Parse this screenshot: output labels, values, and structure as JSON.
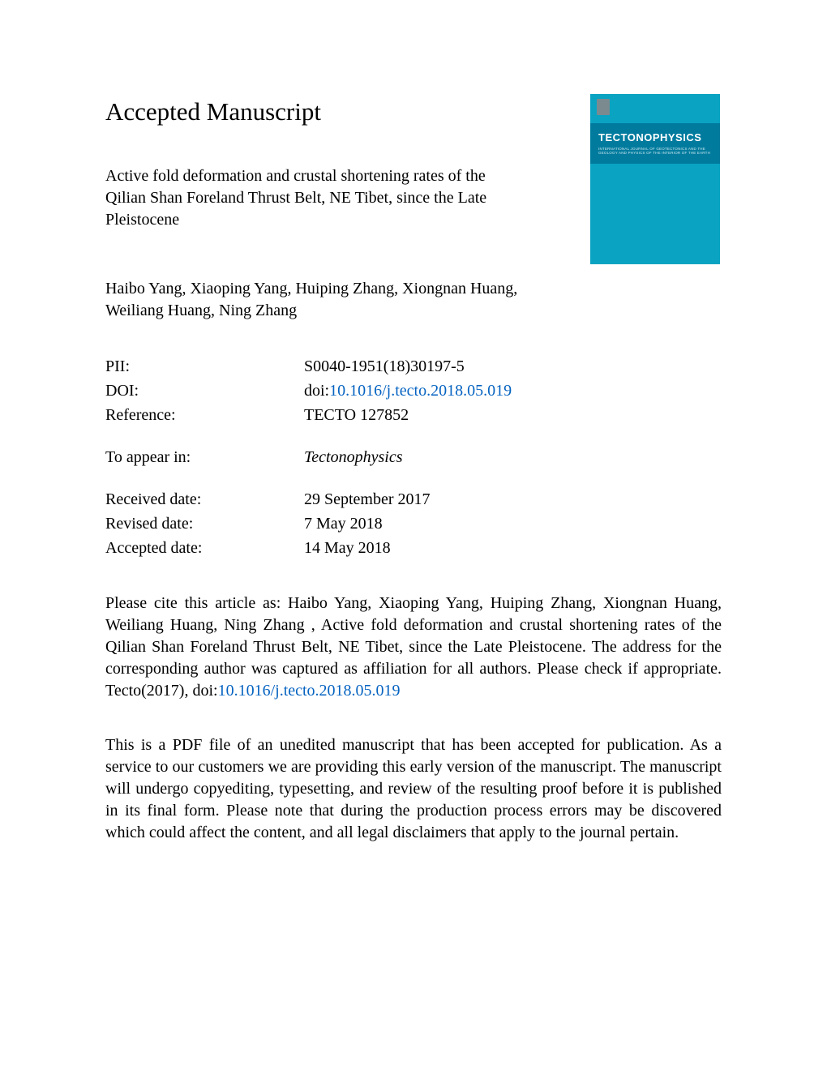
{
  "heading": "Accepted Manuscript",
  "title": "Active fold deformation and crustal shortening rates of the Qilian Shan Foreland Thrust Belt, NE Tibet, since the Late Pleistocene",
  "authors": "Haibo Yang, Xiaoping Yang, Huiping Zhang, Xiongnan Huang, Weiliang Huang, Ning Zhang",
  "meta": {
    "pii_label": "PII:",
    "pii_value": "S0040-1951(18)30197-5",
    "doi_label": "DOI:",
    "doi_prefix": "doi:",
    "doi_link": "10.1016/j.tecto.2018.05.019",
    "reference_label": "Reference:",
    "reference_value": "TECTO 127852",
    "appear_label": "To appear in:",
    "appear_value": "Tectonophysics",
    "received_label": "Received date:",
    "received_value": "29 September 2017",
    "revised_label": "Revised date:",
    "revised_value": "7 May 2018",
    "accepted_label": "Accepted date:",
    "accepted_value": "14 May 2018"
  },
  "citation_pre": "Please cite this article as: Haibo Yang, Xiaoping Yang, Huiping Zhang, Xiongnan Huang, Weiliang Huang, Ning Zhang , Active fold deformation and crustal shortening rates of the Qilian Shan Foreland Thrust Belt, NE Tibet, since the Late Pleistocene. The address for the corresponding author was captured as affiliation for all authors. Please check if appropriate. Tecto(2017), doi:",
  "citation_link": "10.1016/j.tecto.2018.05.019",
  "disclaimer": "This is a PDF file of an unedited manuscript that has been accepted for publication. As a service to our customers we are providing this early version of the manuscript. The manuscript will undergo copyediting, typesetting, and review of the resulting proof before it is published in its final form. Please note that during the production process errors may be discovered which could affect the content, and all legal disclaimers that apply to the journal pertain.",
  "cover": {
    "journal_name": "TECTONOPHYSICS",
    "subtitle": "INTERNATIONAL JOURNAL OF GEOTECTONICS AND THE GEOLOGY AND PHYSICS OF THE INTERIOR OF THE EARTH"
  },
  "colors": {
    "link": "#0563c1",
    "cover_bg": "#0aa3c2",
    "cover_band": "#007b9e"
  }
}
